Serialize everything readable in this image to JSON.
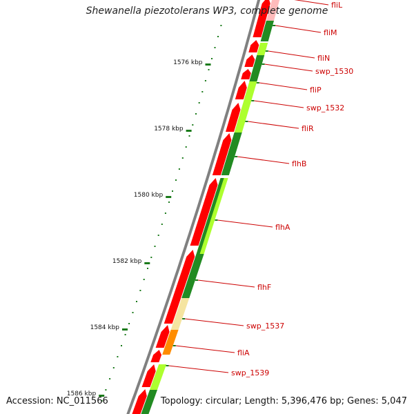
{
  "title": "Shewanella piezotolerans WP3, complete genome",
  "footer": {
    "accession": "Accession: NC_011566",
    "topology": "Topology: circular; Length: 5,396,476 bp; Genes: 5,047"
  },
  "scale": [
    {
      "label": "1576 kbp",
      "kbp": 1576
    },
    {
      "label": "1578 kbp",
      "kbp": 1578
    },
    {
      "label": "1580 kbp",
      "kbp": 1580
    },
    {
      "label": "1582 kbp",
      "kbp": 1582
    },
    {
      "label": "1584 kbp",
      "kbp": 1584
    },
    {
      "label": "1586 kbp",
      "kbp": 1586
    }
  ],
  "genes": [
    {
      "name": "fliL"
    },
    {
      "name": "fliM"
    },
    {
      "name": "fliN"
    },
    {
      "name": "swp_1530"
    },
    {
      "name": "fliP"
    },
    {
      "name": "swp_1532"
    },
    {
      "name": "fliR"
    },
    {
      "name": "flhB"
    },
    {
      "name": "flhA"
    },
    {
      "name": "flhF"
    },
    {
      "name": "swp_1537"
    },
    {
      "name": "fliA"
    },
    {
      "name": "swp_1539"
    }
  ],
  "colors": {
    "backbone": "#808080",
    "cds": "#ff0000",
    "cds_pale": "#ffbbbb",
    "dark_green": "#228b22",
    "light_green": "#adff2f",
    "pale_yellow": "#f5e4a0",
    "orange": "#ff8c00",
    "tick": "#1a7a1a",
    "label": "#cc0000"
  }
}
